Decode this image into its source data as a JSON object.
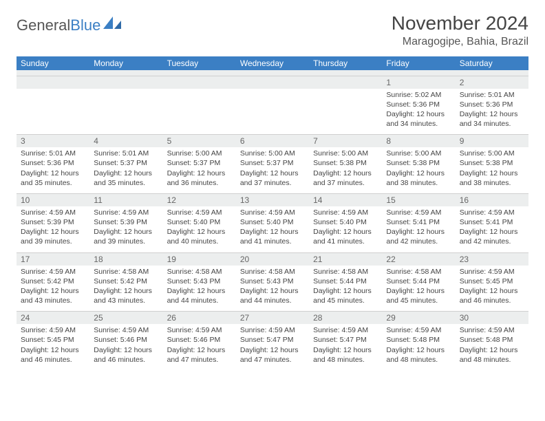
{
  "brand": {
    "part1": "General",
    "part2": "Blue"
  },
  "title": "November 2024",
  "location": "Maragogipe, Bahia, Brazil",
  "dow": [
    "Sunday",
    "Monday",
    "Tuesday",
    "Wednesday",
    "Thursday",
    "Friday",
    "Saturday"
  ],
  "colors": {
    "header_bg": "#3b7fc4",
    "header_fg": "#ffffff",
    "num_bg": "#eceeee",
    "text": "#444444"
  },
  "weeks": [
    {
      "nums": [
        "",
        "",
        "",
        "",
        "",
        "1",
        "2"
      ],
      "cells": [
        null,
        null,
        null,
        null,
        null,
        {
          "sunrise": "5:02 AM",
          "sunset": "5:36 PM",
          "daylight": "12 hours and 34 minutes."
        },
        {
          "sunrise": "5:01 AM",
          "sunset": "5:36 PM",
          "daylight": "12 hours and 34 minutes."
        }
      ]
    },
    {
      "nums": [
        "3",
        "4",
        "5",
        "6",
        "7",
        "8",
        "9"
      ],
      "cells": [
        {
          "sunrise": "5:01 AM",
          "sunset": "5:36 PM",
          "daylight": "12 hours and 35 minutes."
        },
        {
          "sunrise": "5:01 AM",
          "sunset": "5:37 PM",
          "daylight": "12 hours and 35 minutes."
        },
        {
          "sunrise": "5:00 AM",
          "sunset": "5:37 PM",
          "daylight": "12 hours and 36 minutes."
        },
        {
          "sunrise": "5:00 AM",
          "sunset": "5:37 PM",
          "daylight": "12 hours and 37 minutes."
        },
        {
          "sunrise": "5:00 AM",
          "sunset": "5:38 PM",
          "daylight": "12 hours and 37 minutes."
        },
        {
          "sunrise": "5:00 AM",
          "sunset": "5:38 PM",
          "daylight": "12 hours and 38 minutes."
        },
        {
          "sunrise": "5:00 AM",
          "sunset": "5:38 PM",
          "daylight": "12 hours and 38 minutes."
        }
      ]
    },
    {
      "nums": [
        "10",
        "11",
        "12",
        "13",
        "14",
        "15",
        "16"
      ],
      "cells": [
        {
          "sunrise": "4:59 AM",
          "sunset": "5:39 PM",
          "daylight": "12 hours and 39 minutes."
        },
        {
          "sunrise": "4:59 AM",
          "sunset": "5:39 PM",
          "daylight": "12 hours and 39 minutes."
        },
        {
          "sunrise": "4:59 AM",
          "sunset": "5:40 PM",
          "daylight": "12 hours and 40 minutes."
        },
        {
          "sunrise": "4:59 AM",
          "sunset": "5:40 PM",
          "daylight": "12 hours and 41 minutes."
        },
        {
          "sunrise": "4:59 AM",
          "sunset": "5:40 PM",
          "daylight": "12 hours and 41 minutes."
        },
        {
          "sunrise": "4:59 AM",
          "sunset": "5:41 PM",
          "daylight": "12 hours and 42 minutes."
        },
        {
          "sunrise": "4:59 AM",
          "sunset": "5:41 PM",
          "daylight": "12 hours and 42 minutes."
        }
      ]
    },
    {
      "nums": [
        "17",
        "18",
        "19",
        "20",
        "21",
        "22",
        "23"
      ],
      "cells": [
        {
          "sunrise": "4:59 AM",
          "sunset": "5:42 PM",
          "daylight": "12 hours and 43 minutes."
        },
        {
          "sunrise": "4:58 AM",
          "sunset": "5:42 PM",
          "daylight": "12 hours and 43 minutes."
        },
        {
          "sunrise": "4:58 AM",
          "sunset": "5:43 PM",
          "daylight": "12 hours and 44 minutes."
        },
        {
          "sunrise": "4:58 AM",
          "sunset": "5:43 PM",
          "daylight": "12 hours and 44 minutes."
        },
        {
          "sunrise": "4:58 AM",
          "sunset": "5:44 PM",
          "daylight": "12 hours and 45 minutes."
        },
        {
          "sunrise": "4:58 AM",
          "sunset": "5:44 PM",
          "daylight": "12 hours and 45 minutes."
        },
        {
          "sunrise": "4:59 AM",
          "sunset": "5:45 PM",
          "daylight": "12 hours and 46 minutes."
        }
      ]
    },
    {
      "nums": [
        "24",
        "25",
        "26",
        "27",
        "28",
        "29",
        "30"
      ],
      "cells": [
        {
          "sunrise": "4:59 AM",
          "sunset": "5:45 PM",
          "daylight": "12 hours and 46 minutes."
        },
        {
          "sunrise": "4:59 AM",
          "sunset": "5:46 PM",
          "daylight": "12 hours and 46 minutes."
        },
        {
          "sunrise": "4:59 AM",
          "sunset": "5:46 PM",
          "daylight": "12 hours and 47 minutes."
        },
        {
          "sunrise": "4:59 AM",
          "sunset": "5:47 PM",
          "daylight": "12 hours and 47 minutes."
        },
        {
          "sunrise": "4:59 AM",
          "sunset": "5:47 PM",
          "daylight": "12 hours and 48 minutes."
        },
        {
          "sunrise": "4:59 AM",
          "sunset": "5:48 PM",
          "daylight": "12 hours and 48 minutes."
        },
        {
          "sunrise": "4:59 AM",
          "sunset": "5:48 PM",
          "daylight": "12 hours and 48 minutes."
        }
      ]
    }
  ],
  "labels": {
    "sunrise": "Sunrise: ",
    "sunset": "Sunset: ",
    "daylight": "Daylight: "
  }
}
